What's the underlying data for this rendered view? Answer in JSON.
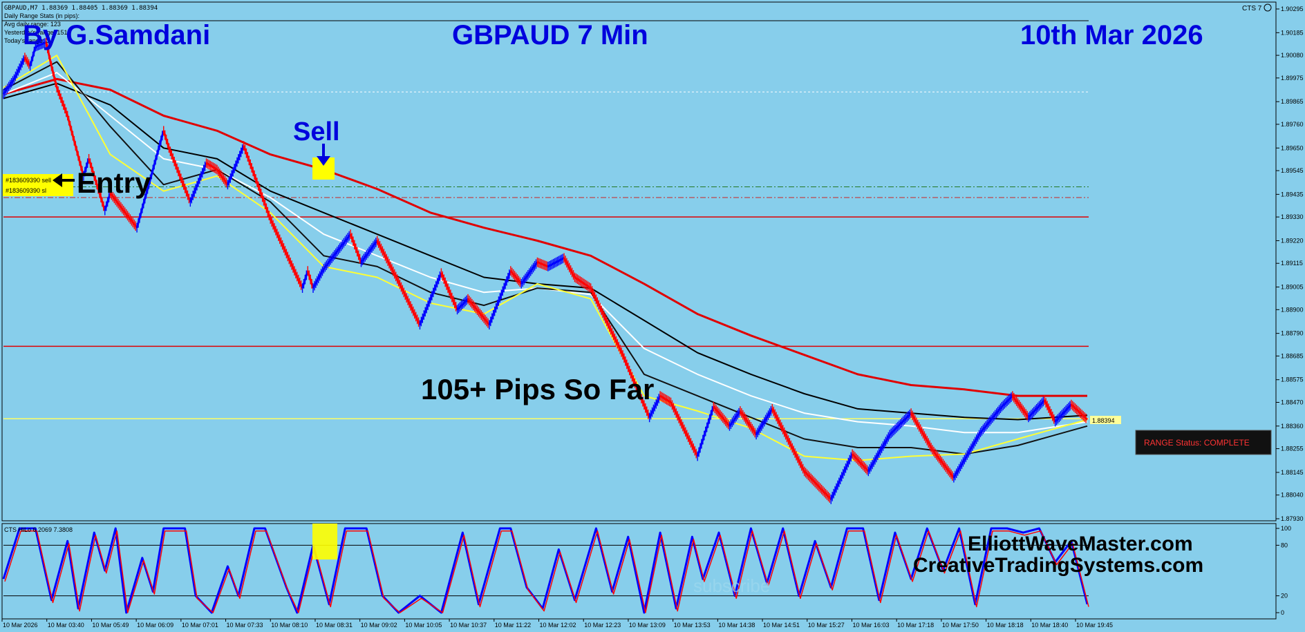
{
  "header": {
    "symbol_info": "GBPAUD,M7  1.88369 1.88405 1.88369 1.88394",
    "stats_lines": [
      "Daily Range Stats (in pips):",
      "Avg daily range: 123",
      "Yesterday's range: 151",
      "Today's range: 3"
    ],
    "cts_label": "CTS 7"
  },
  "overlay": {
    "author": "By G.Samdani",
    "title": "GBPAUD 7 Min",
    "date": "10th Mar 2026",
    "sell": "Sell",
    "entry": "Entry",
    "pips": "105+ Pips So Far",
    "site1": "ElliottWaveMaster.com",
    "site2": "CreativeTradingSystems.com",
    "watermark": "subscribe",
    "range_status": "RANGE Status: COMPLETE"
  },
  "orders": {
    "sell_label": "#183609390 sell",
    "sl_label": "#183609390 sl",
    "sell_price": 1.8947,
    "sl_price": 1.8942
  },
  "colors": {
    "background": "#87ceeb",
    "up_bar": "#0000ff",
    "down_bar": "#ff0000",
    "ma_red": "#e00000",
    "ma_black": "#000000",
    "ma_white": "#ffffff",
    "ma_yellow": "#ffff33",
    "text_blue": "#0000dd",
    "highlight": "#ffff00"
  },
  "chart_data": {
    "type": "line",
    "title": "GBPAUD 7 Min",
    "price_ticks": [
      "1.90295",
      "1.90185",
      "1.90080",
      "1.89975",
      "1.89865",
      "1.89760",
      "1.89650",
      "1.89545",
      "1.89435",
      "1.89330",
      "1.89220",
      "1.89115",
      "1.89005",
      "1.88900",
      "1.88790",
      "1.88685",
      "1.88575",
      "1.88470",
      "1.88360",
      "1.88255",
      "1.88145",
      "1.88040",
      "1.87930"
    ],
    "ylim": [
      1.8793,
      1.90295
    ],
    "current_price": "1.88394",
    "time_labels": [
      "10 Mar 2026",
      "10 Mar 03:40",
      "10 Mar 05:49",
      "10 Mar 06:09",
      "10 Mar 07:01",
      "10 Mar 07:33",
      "10 Mar 08:10",
      "10 Mar 08:31",
      "10 Mar 09:02",
      "10 Mar 10:05",
      "10 Mar 10:37",
      "10 Mar 11:22",
      "10 Mar 12:02",
      "10 Mar 12:23",
      "10 Mar 13:09",
      "10 Mar 13:53",
      "10 Mar 14:38",
      "10 Mar 14:51",
      "10 Mar 15:27",
      "10 Mar 16:03",
      "10 Mar 17:18",
      "10 Mar 17:50",
      "10 Mar 18:18",
      "10 Mar 18:40",
      "10 Mar 19:45"
    ],
    "price_path": [
      [
        0,
        1.899
      ],
      [
        2,
        1.8997
      ],
      [
        4,
        1.9007
      ],
      [
        5,
        1.9003
      ],
      [
        6,
        1.9012
      ],
      [
        8,
        1.9014
      ],
      [
        9,
        1.9003
      ],
      [
        10,
        1.8993
      ],
      [
        12,
        1.898
      ],
      [
        15,
        1.8952
      ],
      [
        16,
        1.896
      ],
      [
        19,
        1.8936
      ],
      [
        20,
        1.8944
      ],
      [
        25,
        1.8928
      ],
      [
        30,
        1.8973
      ],
      [
        31,
        1.8965
      ],
      [
        35,
        1.894
      ],
      [
        38,
        1.8958
      ],
      [
        40,
        1.8955
      ],
      [
        42,
        1.8948
      ],
      [
        45,
        1.8966
      ],
      [
        50,
        1.8932
      ],
      [
        56,
        1.89
      ],
      [
        57,
        1.8908
      ],
      [
        58,
        1.89
      ],
      [
        60,
        1.8909
      ],
      [
        65,
        1.8925
      ],
      [
        67,
        1.8912
      ],
      [
        70,
        1.8922
      ],
      [
        74,
        1.8903
      ],
      [
        78,
        1.8883
      ],
      [
        82,
        1.8907
      ],
      [
        85,
        1.889
      ],
      [
        87,
        1.8895
      ],
      [
        91,
        1.8883
      ],
      [
        95,
        1.8908
      ],
      [
        97,
        1.8902
      ],
      [
        100,
        1.8912
      ],
      [
        102,
        1.891
      ],
      [
        105,
        1.8914
      ],
      [
        107,
        1.8905
      ],
      [
        110,
        1.89
      ],
      [
        116,
        1.8869
      ],
      [
        121,
        1.884
      ],
      [
        123,
        1.885
      ],
      [
        125,
        1.8847
      ],
      [
        130,
        1.8822
      ],
      [
        133,
        1.8845
      ],
      [
        136,
        1.8836
      ],
      [
        138,
        1.8843
      ],
      [
        141,
        1.8832
      ],
      [
        144,
        1.8844
      ],
      [
        150,
        1.8815
      ],
      [
        155,
        1.8802
      ],
      [
        159,
        1.8823
      ],
      [
        162,
        1.8815
      ],
      [
        166,
        1.8832
      ],
      [
        170,
        1.8842
      ],
      [
        174,
        1.8825
      ],
      [
        178,
        1.8812
      ],
      [
        183,
        1.8833
      ],
      [
        187,
        1.8845
      ],
      [
        189,
        1.885
      ],
      [
        192,
        1.884
      ],
      [
        195,
        1.8848
      ],
      [
        197,
        1.8838
      ],
      [
        200,
        1.8846
      ],
      [
        203,
        1.8839
      ]
    ],
    "series": [
      {
        "name": "",
        "color": "#e00000",
        "values": [
          [
            0,
            1.899
          ],
          [
            10,
            1.8997
          ],
          [
            20,
            1.8992
          ],
          [
            30,
            1.898
          ],
          [
            40,
            1.8973
          ],
          [
            50,
            1.8962
          ],
          [
            60,
            1.8955
          ],
          [
            70,
            1.8946
          ],
          [
            80,
            1.8935
          ],
          [
            90,
            1.8928
          ],
          [
            100,
            1.8922
          ],
          [
            110,
            1.8915
          ],
          [
            120,
            1.8902
          ],
          [
            130,
            1.8888
          ],
          [
            140,
            1.8878
          ],
          [
            150,
            1.8869
          ],
          [
            160,
            1.886
          ],
          [
            170,
            1.8855
          ],
          [
            180,
            1.8853
          ],
          [
            190,
            1.885
          ],
          [
            203,
            1.885
          ]
        ]
      },
      {
        "name": "",
        "color": "#000000",
        "values": [
          [
            0,
            1.8988
          ],
          [
            10,
            1.8995
          ],
          [
            20,
            1.8985
          ],
          [
            30,
            1.8965
          ],
          [
            40,
            1.896
          ],
          [
            50,
            1.8945
          ],
          [
            60,
            1.8935
          ],
          [
            70,
            1.8925
          ],
          [
            80,
            1.8915
          ],
          [
            90,
            1.8905
          ],
          [
            100,
            1.8902
          ],
          [
            110,
            1.89
          ],
          [
            120,
            1.8885
          ],
          [
            130,
            1.887
          ],
          [
            140,
            1.886
          ],
          [
            150,
            1.8851
          ],
          [
            160,
            1.8844
          ],
          [
            170,
            1.8842
          ],
          [
            180,
            1.884
          ],
          [
            190,
            1.8839
          ],
          [
            203,
            1.8841
          ]
        ]
      },
      {
        "name": "",
        "color": "#ffffff",
        "values": [
          [
            0,
            1.899
          ],
          [
            10,
            1.9
          ],
          [
            20,
            1.898
          ],
          [
            30,
            1.896
          ],
          [
            40,
            1.8955
          ],
          [
            50,
            1.8942
          ],
          [
            60,
            1.8925
          ],
          [
            70,
            1.8915
          ],
          [
            80,
            1.8905
          ],
          [
            90,
            1.8898
          ],
          [
            100,
            1.89
          ],
          [
            110,
            1.8897
          ],
          [
            120,
            1.8872
          ],
          [
            130,
            1.886
          ],
          [
            140,
            1.885
          ],
          [
            150,
            1.8842
          ],
          [
            160,
            1.8838
          ],
          [
            170,
            1.8836
          ],
          [
            180,
            1.8833
          ],
          [
            190,
            1.8833
          ],
          [
            203,
            1.8838
          ]
        ]
      },
      {
        "name": "",
        "color": "#111111",
        "values": [
          [
            0,
            1.8992
          ],
          [
            10,
            1.9005
          ],
          [
            20,
            1.8975
          ],
          [
            30,
            1.8948
          ],
          [
            40,
            1.8955
          ],
          [
            50,
            1.894
          ],
          [
            60,
            1.8915
          ],
          [
            70,
            1.891
          ],
          [
            80,
            1.8898
          ],
          [
            90,
            1.8892
          ],
          [
            100,
            1.89
          ],
          [
            110,
            1.8898
          ],
          [
            120,
            1.886
          ],
          [
            130,
            1.885
          ],
          [
            140,
            1.884
          ],
          [
            150,
            1.883
          ],
          [
            160,
            1.8826
          ],
          [
            170,
            1.8826
          ],
          [
            180,
            1.8823
          ],
          [
            190,
            1.8827
          ],
          [
            203,
            1.8836
          ]
        ]
      },
      {
        "name": "",
        "color": "#ffff33",
        "values": [
          [
            0,
            1.8993
          ],
          [
            10,
            1.9008
          ],
          [
            20,
            1.8962
          ],
          [
            30,
            1.8945
          ],
          [
            40,
            1.8952
          ],
          [
            50,
            1.8935
          ],
          [
            60,
            1.891
          ],
          [
            70,
            1.8905
          ],
          [
            80,
            1.8893
          ],
          [
            90,
            1.8888
          ],
          [
            100,
            1.8902
          ],
          [
            110,
            1.8895
          ],
          [
            120,
            1.885
          ],
          [
            130,
            1.8843
          ],
          [
            140,
            1.8835
          ],
          [
            150,
            1.8822
          ],
          [
            160,
            1.882
          ],
          [
            170,
            1.8822
          ],
          [
            180,
            1.8823
          ],
          [
            190,
            1.883
          ],
          [
            203,
            1.8839
          ]
        ]
      }
    ],
    "horizontal_lines": [
      {
        "price": 1.8991,
        "color": "#ffffff",
        "style": "dotted"
      },
      {
        "price": 1.8933,
        "color": "#e00000",
        "style": "solid"
      },
      {
        "price": 1.8873,
        "color": "#e00000",
        "style": "solid"
      },
      {
        "price": 1.88394,
        "color": "#ffff66",
        "style": "solid"
      }
    ],
    "oscillator": {
      "label": "CTS HiLo 6.2069 7.3808",
      "levels": [
        "100",
        "80",
        "20",
        "0"
      ],
      "ylim": [
        0,
        100
      ],
      "values": [
        [
          0,
          40
        ],
        [
          3,
          100
        ],
        [
          6,
          100
        ],
        [
          9,
          15
        ],
        [
          12,
          85
        ],
        [
          14,
          5
        ],
        [
          17,
          95
        ],
        [
          19,
          50
        ],
        [
          21,
          100
        ],
        [
          23,
          0
        ],
        [
          26,
          65
        ],
        [
          28,
          25
        ],
        [
          30,
          100
        ],
        [
          34,
          100
        ],
        [
          36,
          20
        ],
        [
          39,
          0
        ],
        [
          42,
          55
        ],
        [
          44,
          20
        ],
        [
          47,
          100
        ],
        [
          49,
          100
        ],
        [
          53,
          30
        ],
        [
          55,
          0
        ],
        [
          58,
          80
        ],
        [
          61,
          10
        ],
        [
          64,
          100
        ],
        [
          68,
          100
        ],
        [
          71,
          20
        ],
        [
          74,
          0
        ],
        [
          78,
          20
        ],
        [
          82,
          0
        ],
        [
          86,
          95
        ],
        [
          89,
          10
        ],
        [
          93,
          100
        ],
        [
          95,
          100
        ],
        [
          98,
          30
        ],
        [
          101,
          5
        ],
        [
          104,
          75
        ],
        [
          107,
          15
        ],
        [
          111,
          100
        ],
        [
          114,
          25
        ],
        [
          117,
          90
        ],
        [
          120,
          0
        ],
        [
          123,
          95
        ],
        [
          126,
          5
        ],
        [
          129,
          90
        ],
        [
          131,
          40
        ],
        [
          134,
          95
        ],
        [
          137,
          20
        ],
        [
          140,
          100
        ],
        [
          143,
          35
        ],
        [
          146,
          100
        ],
        [
          149,
          20
        ],
        [
          152,
          85
        ],
        [
          155,
          30
        ],
        [
          158,
          100
        ],
        [
          161,
          100
        ],
        [
          164,
          15
        ],
        [
          167,
          95
        ],
        [
          170,
          40
        ],
        [
          173,
          100
        ],
        [
          176,
          50
        ],
        [
          179,
          100
        ],
        [
          182,
          10
        ],
        [
          185,
          100
        ],
        [
          188,
          100
        ],
        [
          191,
          95
        ],
        [
          194,
          100
        ],
        [
          197,
          60
        ],
        [
          200,
          85
        ],
        [
          203,
          10
        ]
      ]
    }
  }
}
